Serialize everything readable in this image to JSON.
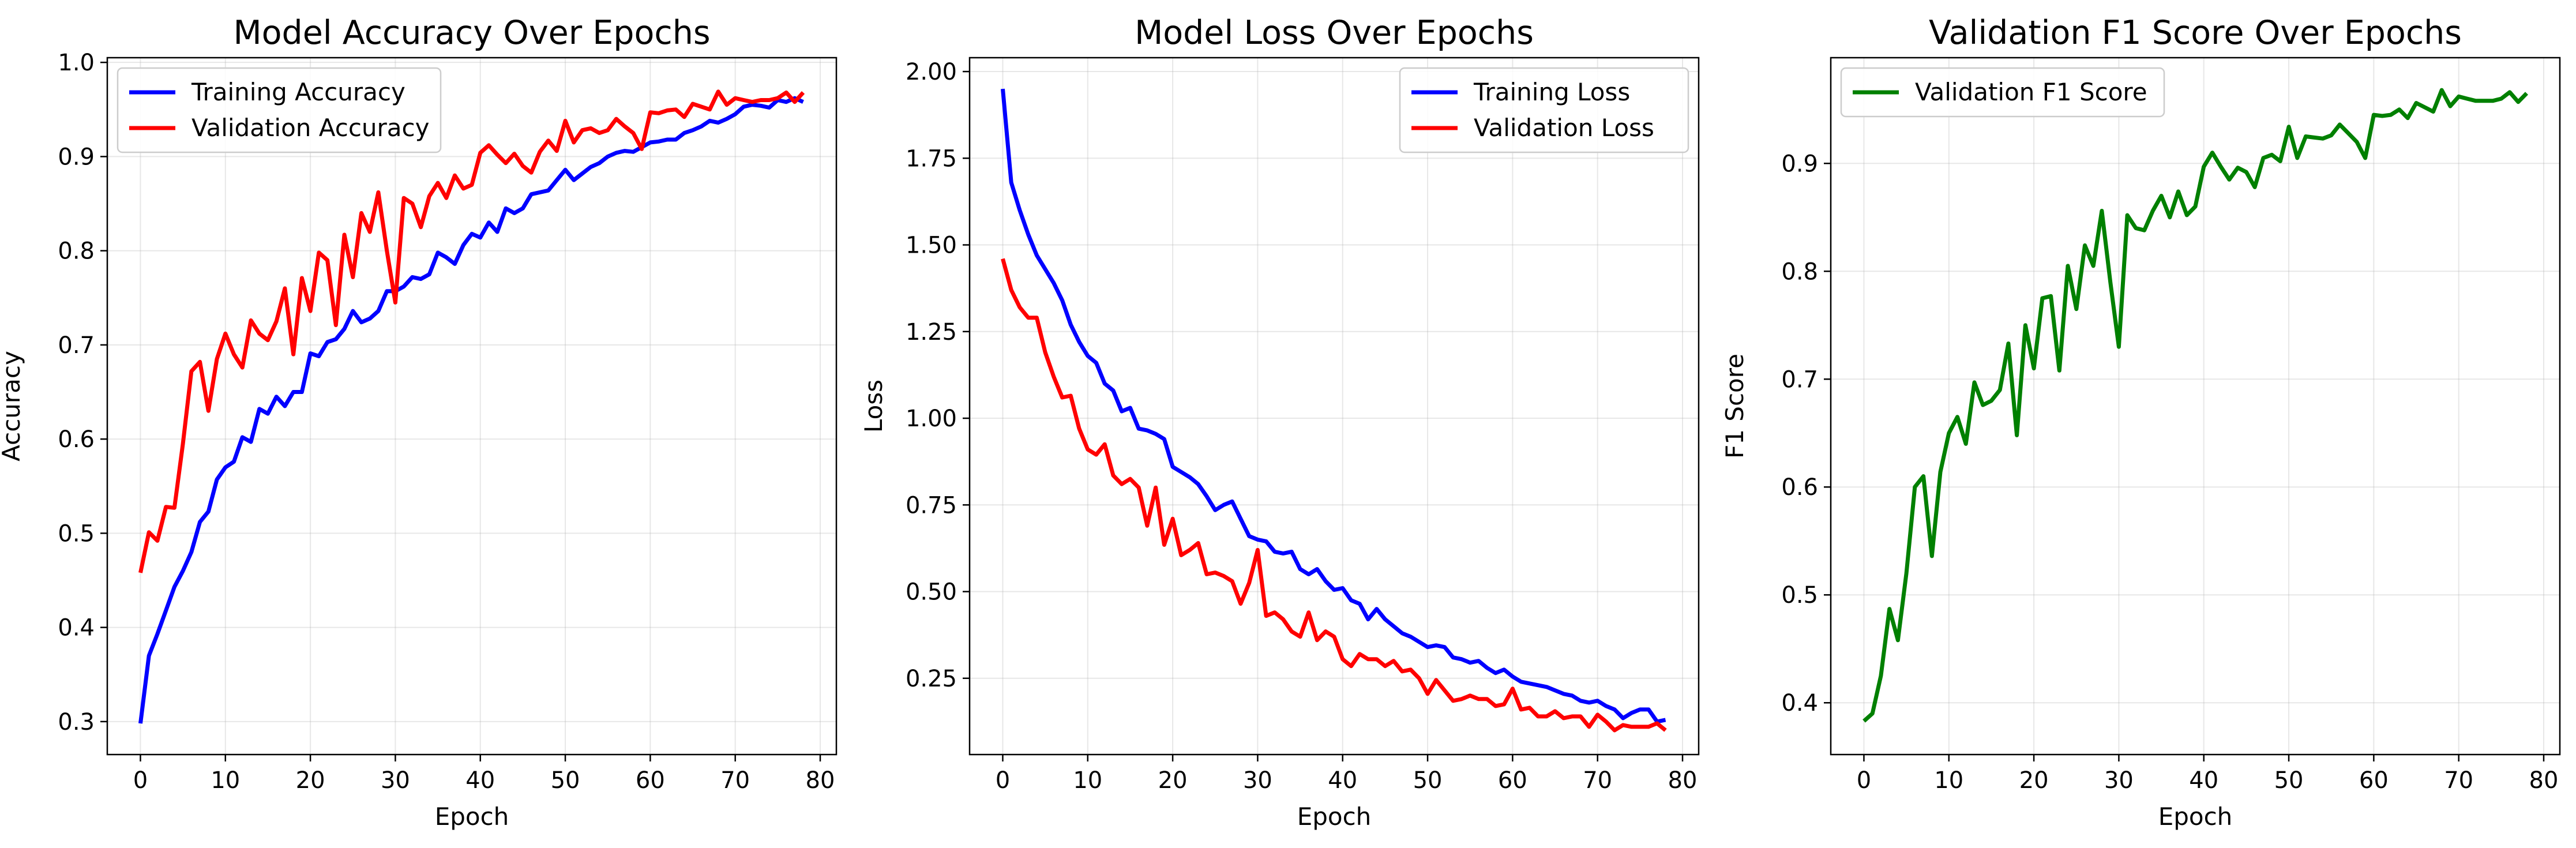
{
  "figure": {
    "panels": [
      {
        "title": "Model Accuracy Over Epochs",
        "xlabel": "Epoch",
        "ylabel": "Accuracy"
      },
      {
        "title": "Model Loss Over Epochs",
        "xlabel": "Epoch",
        "ylabel": "Loss"
      },
      {
        "title": "Validation F1 Score Over Epochs",
        "xlabel": "Epoch",
        "ylabel": "F1 Score"
      }
    ]
  },
  "chart_data": [
    {
      "type": "line",
      "title": "Model Accuracy Over Epochs",
      "xlabel": "Epoch",
      "ylabel": "Accuracy",
      "xlim": [
        -3.9,
        81.9
      ],
      "ylim": [
        0.265,
        1.005
      ],
      "xticks": [
        0,
        10,
        20,
        30,
        40,
        50,
        60,
        70,
        80
      ],
      "yticks": [
        0.3,
        0.4,
        0.5,
        0.6,
        0.7,
        0.8,
        0.9,
        1.0
      ],
      "ytick_labels": [
        "0.3",
        "0.4",
        "0.5",
        "0.6",
        "0.7",
        "0.8",
        "0.9",
        "1.0"
      ],
      "grid": true,
      "legend": "upper-left",
      "series": [
        {
          "name": "Training Accuracy",
          "color": "#0000ff",
          "values": [
            0.298,
            0.37,
            0.393,
            0.418,
            0.443,
            0.46,
            0.48,
            0.512,
            0.523,
            0.557,
            0.57,
            0.576,
            0.602,
            0.597,
            0.632,
            0.627,
            0.645,
            0.635,
            0.65,
            0.65,
            0.691,
            0.688,
            0.703,
            0.706,
            0.717,
            0.736,
            0.724,
            0.728,
            0.736,
            0.757,
            0.757,
            0.762,
            0.772,
            0.77,
            0.775,
            0.798,
            0.793,
            0.786,
            0.806,
            0.818,
            0.814,
            0.83,
            0.82,
            0.845,
            0.84,
            0.845,
            0.86,
            0.862,
            0.864,
            0.875,
            0.886,
            0.875,
            0.882,
            0.889,
            0.893,
            0.9,
            0.904,
            0.906,
            0.905,
            0.91,
            0.915,
            0.916,
            0.918,
            0.918,
            0.925,
            0.928,
            0.932,
            0.938,
            0.936,
            0.94,
            0.945,
            0.953,
            0.955,
            0.954,
            0.952,
            0.96,
            0.958,
            0.962,
            0.958
          ]
        },
        {
          "name": "Validation Accuracy",
          "color": "#ff0000",
          "values": [
            0.458,
            0.501,
            0.492,
            0.528,
            0.527,
            0.595,
            0.672,
            0.682,
            0.63,
            0.685,
            0.712,
            0.69,
            0.676,
            0.726,
            0.712,
            0.705,
            0.725,
            0.76,
            0.69,
            0.771,
            0.736,
            0.798,
            0.79,
            0.721,
            0.817,
            0.772,
            0.84,
            0.82,
            0.862,
            0.8,
            0.745,
            0.856,
            0.85,
            0.825,
            0.858,
            0.872,
            0.856,
            0.88,
            0.866,
            0.87,
            0.904,
            0.912,
            0.902,
            0.893,
            0.903,
            0.89,
            0.883,
            0.905,
            0.917,
            0.906,
            0.938,
            0.915,
            0.928,
            0.93,
            0.925,
            0.928,
            0.94,
            0.932,
            0.925,
            0.908,
            0.947,
            0.946,
            0.949,
            0.95,
            0.942,
            0.956,
            0.953,
            0.95,
            0.969,
            0.955,
            0.962,
            0.96,
            0.958,
            0.96,
            0.96,
            0.962,
            0.968,
            0.958,
            0.968
          ]
        }
      ]
    },
    {
      "type": "line",
      "title": "Model Loss Over Epochs",
      "xlabel": "Epoch",
      "ylabel": "Loss",
      "xlim": [
        -3.9,
        81.9
      ],
      "ylim": [
        0.03,
        2.04
      ],
      "xticks": [
        0,
        10,
        20,
        30,
        40,
        50,
        60,
        70,
        80
      ],
      "yticks": [
        0.25,
        0.5,
        0.75,
        1.0,
        1.25,
        1.5,
        1.75,
        2.0
      ],
      "ytick_labels": [
        "0.25",
        "0.50",
        "0.75",
        "1.00",
        "1.25",
        "1.50",
        "1.75",
        "2.00"
      ],
      "grid": true,
      "legend": "upper-right",
      "series": [
        {
          "name": "Training Loss",
          "color": "#0000ff",
          "values": [
            1.95,
            1.68,
            1.6,
            1.53,
            1.47,
            1.43,
            1.39,
            1.34,
            1.27,
            1.22,
            1.18,
            1.16,
            1.1,
            1.08,
            1.02,
            1.03,
            0.97,
            0.965,
            0.955,
            0.94,
            0.86,
            0.845,
            0.83,
            0.81,
            0.775,
            0.735,
            0.75,
            0.76,
            0.71,
            0.66,
            0.65,
            0.645,
            0.615,
            0.61,
            0.615,
            0.565,
            0.55,
            0.565,
            0.53,
            0.505,
            0.51,
            0.475,
            0.465,
            0.42,
            0.45,
            0.42,
            0.4,
            0.38,
            0.37,
            0.355,
            0.34,
            0.345,
            0.34,
            0.31,
            0.305,
            0.295,
            0.3,
            0.28,
            0.265,
            0.275,
            0.255,
            0.24,
            0.235,
            0.23,
            0.225,
            0.215,
            0.205,
            0.2,
            0.185,
            0.18,
            0.185,
            0.17,
            0.16,
            0.135,
            0.15,
            0.16,
            0.16,
            0.125,
            0.13
          ]
        },
        {
          "name": "Validation Loss",
          "color": "#ff0000",
          "values": [
            1.46,
            1.37,
            1.32,
            1.29,
            1.29,
            1.19,
            1.12,
            1.06,
            1.065,
            0.97,
            0.91,
            0.895,
            0.925,
            0.835,
            0.81,
            0.825,
            0.8,
            0.69,
            0.8,
            0.635,
            0.71,
            0.605,
            0.62,
            0.64,
            0.55,
            0.555,
            0.545,
            0.53,
            0.465,
            0.525,
            0.62,
            0.43,
            0.44,
            0.42,
            0.385,
            0.37,
            0.44,
            0.36,
            0.385,
            0.37,
            0.305,
            0.285,
            0.32,
            0.305,
            0.305,
            0.285,
            0.3,
            0.27,
            0.275,
            0.25,
            0.205,
            0.245,
            0.215,
            0.185,
            0.19,
            0.2,
            0.19,
            0.19,
            0.17,
            0.175,
            0.22,
            0.16,
            0.165,
            0.14,
            0.14,
            0.155,
            0.135,
            0.14,
            0.14,
            0.11,
            0.145,
            0.125,
            0.1,
            0.115,
            0.11,
            0.11,
            0.11,
            0.12,
            0.1
          ]
        }
      ]
    },
    {
      "type": "line",
      "title": "Validation F1 Score Over Epochs",
      "xlabel": "Epoch",
      "ylabel": "F1 Score",
      "xlim": [
        -3.9,
        81.9
      ],
      "ylim": [
        0.352,
        0.998
      ],
      "xticks": [
        0,
        10,
        20,
        30,
        40,
        50,
        60,
        70,
        80
      ],
      "yticks": [
        0.4,
        0.5,
        0.6,
        0.7,
        0.8,
        0.9
      ],
      "ytick_labels": [
        "0.4",
        "0.5",
        "0.6",
        "0.7",
        "0.8",
        "0.9"
      ],
      "grid": true,
      "legend": "upper-left",
      "series": [
        {
          "name": "Validation F1 Score",
          "color": "#008000",
          "values": [
            0.383,
            0.39,
            0.425,
            0.487,
            0.458,
            0.52,
            0.6,
            0.61,
            0.536,
            0.614,
            0.65,
            0.665,
            0.64,
            0.697,
            0.676,
            0.68,
            0.69,
            0.733,
            0.648,
            0.75,
            0.71,
            0.775,
            0.777,
            0.708,
            0.805,
            0.765,
            0.824,
            0.805,
            0.856,
            0.79,
            0.73,
            0.852,
            0.84,
            0.838,
            0.856,
            0.87,
            0.85,
            0.874,
            0.852,
            0.86,
            0.897,
            0.91,
            0.897,
            0.885,
            0.896,
            0.892,
            0.878,
            0.905,
            0.908,
            0.902,
            0.934,
            0.905,
            0.925,
            0.924,
            0.923,
            0.926,
            0.936,
            0.928,
            0.92,
            0.905,
            0.945,
            0.944,
            0.945,
            0.95,
            0.942,
            0.956,
            0.952,
            0.948,
            0.968,
            0.953,
            0.962,
            0.96,
            0.958,
            0.958,
            0.958,
            0.96,
            0.966,
            0.957,
            0.965
          ]
        }
      ]
    }
  ]
}
